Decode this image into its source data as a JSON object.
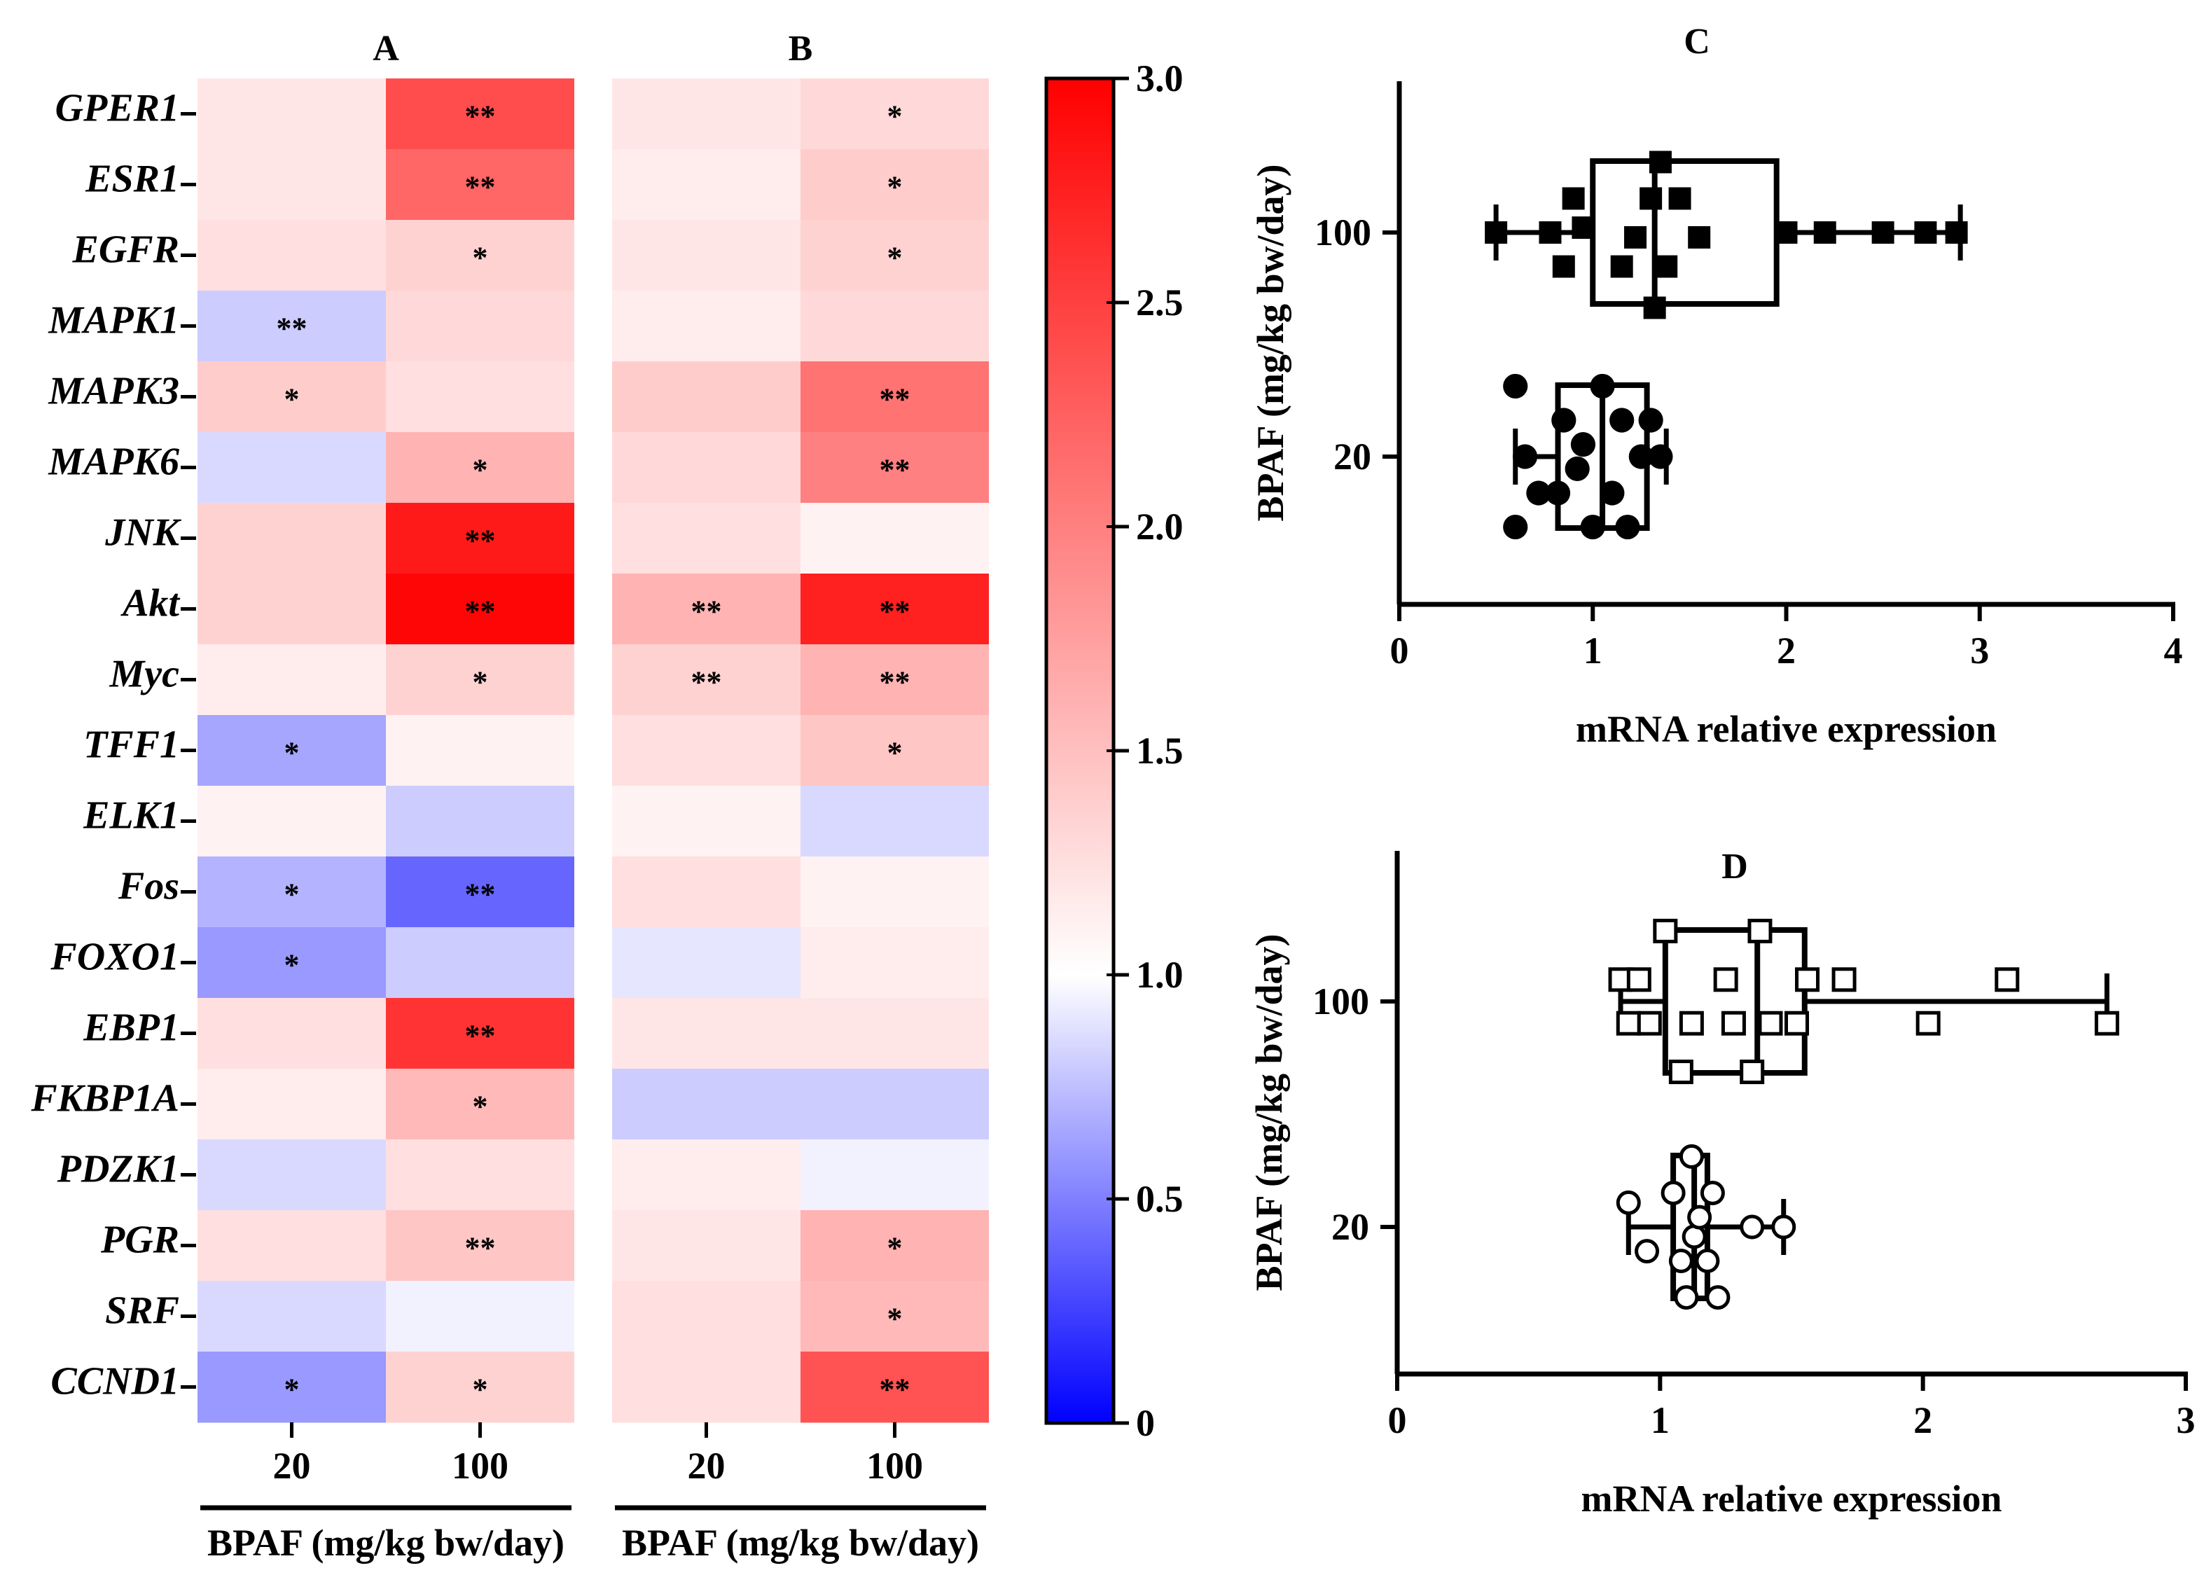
{
  "chart_data": [
    {
      "type": "heatmap",
      "panel": "A",
      "title": "A",
      "rows": [
        "GPER1",
        "ESR1",
        "EGFR",
        "MAPK1",
        "MAPK3",
        "MAPK6",
        "JNK",
        "Akt",
        "Myc",
        "TFF1",
        "ELK1",
        "Fos",
        "FOXO1",
        "EBP1",
        "FKBP1A",
        "PDZK1",
        "PGR",
        "SRF",
        "CCND1"
      ],
      "columns": [
        "20",
        "100"
      ],
      "xlabel": "BPAF (mg/kg bw/day)",
      "values": [
        [
          1.2,
          2.4
        ],
        [
          1.2,
          2.2
        ],
        [
          1.25,
          1.35
        ],
        [
          0.8,
          1.3
        ],
        [
          1.4,
          1.25
        ],
        [
          0.85,
          1.6
        ],
        [
          1.35,
          2.8
        ],
        [
          1.35,
          2.95
        ],
        [
          1.15,
          1.35
        ],
        [
          0.65,
          1.1
        ],
        [
          1.1,
          0.8
        ],
        [
          0.7,
          0.4
        ],
        [
          0.6,
          0.8
        ],
        [
          1.25,
          2.6
        ],
        [
          1.15,
          1.55
        ],
        [
          0.85,
          1.25
        ],
        [
          1.25,
          1.45
        ],
        [
          0.85,
          0.95
        ],
        [
          0.6,
          1.35
        ]
      ],
      "significance": [
        [
          "",
          "**"
        ],
        [
          "",
          "**"
        ],
        [
          "",
          "*"
        ],
        [
          "**",
          ""
        ],
        [
          "*",
          ""
        ],
        [
          "",
          "*"
        ],
        [
          "",
          "**"
        ],
        [
          "",
          "**"
        ],
        [
          "",
          "*"
        ],
        [
          "*",
          ""
        ],
        [
          "",
          ""
        ],
        [
          "*",
          "**"
        ],
        [
          "*",
          ""
        ],
        [
          "",
          "**"
        ],
        [
          "",
          "*"
        ],
        [
          "",
          ""
        ],
        [
          "",
          "**"
        ],
        [
          "",
          ""
        ],
        [
          "*",
          "*"
        ]
      ]
    },
    {
      "type": "heatmap",
      "panel": "B",
      "title": "B",
      "rows": [
        "GPER1",
        "ESR1",
        "EGFR",
        "MAPK1",
        "MAPK3",
        "MAPK6",
        "JNK",
        "Akt",
        "Myc",
        "TFF1",
        "ELK1",
        "Fos",
        "FOXO1",
        "EBP1",
        "FKBP1A",
        "PDZK1",
        "PGR",
        "SRF",
        "CCND1"
      ],
      "columns": [
        "20",
        "100"
      ],
      "xlabel": "BPAF (mg/kg bw/day)",
      "values": [
        [
          1.2,
          1.3
        ],
        [
          1.15,
          1.4
        ],
        [
          1.2,
          1.35
        ],
        [
          1.15,
          1.3
        ],
        [
          1.4,
          2.1
        ],
        [
          1.3,
          2.0
        ],
        [
          1.25,
          1.1
        ],
        [
          1.6,
          2.75
        ],
        [
          1.35,
          1.6
        ],
        [
          1.25,
          1.45
        ],
        [
          1.1,
          0.85
        ],
        [
          1.25,
          1.1
        ],
        [
          0.9,
          1.15
        ],
        [
          1.2,
          1.2
        ],
        [
          0.8,
          0.8
        ],
        [
          1.15,
          0.95
        ],
        [
          1.2,
          1.6
        ],
        [
          1.25,
          1.55
        ],
        [
          1.25,
          2.35
        ]
      ],
      "significance": [
        [
          "",
          "*"
        ],
        [
          "",
          "*"
        ],
        [
          "",
          "*"
        ],
        [
          "",
          ""
        ],
        [
          "",
          "**"
        ],
        [
          "",
          "**"
        ],
        [
          "",
          ""
        ],
        [
          "**",
          "**"
        ],
        [
          "**",
          "**"
        ],
        [
          "",
          "*"
        ],
        [
          "",
          ""
        ],
        [
          "",
          ""
        ],
        [
          "",
          ""
        ],
        [
          "",
          ""
        ],
        [
          "",
          ""
        ],
        [
          "",
          ""
        ],
        [
          "",
          "*"
        ],
        [
          "",
          "*"
        ],
        [
          "",
          "**"
        ]
      ]
    },
    {
      "type": "colorbar",
      "range": [
        0,
        3.0
      ],
      "ticks": [
        "0",
        "0.5",
        "1.0",
        "1.5",
        "2.0",
        "2.5",
        "3.0"
      ],
      "tick_values": [
        0,
        0.5,
        1.0,
        1.5,
        2.0,
        2.5,
        3.0
      ],
      "colors": {
        "low": "#0000ff",
        "mid": "#ffffff",
        "high": "#ff0000"
      }
    },
    {
      "type": "scatter",
      "panel": "C",
      "title": "C",
      "orientation": "horizontal box plot with points",
      "xlabel": "mRNA relative expression",
      "ylabel": "BPAF (mg/kg bw/day)",
      "xlim": [
        0,
        4
      ],
      "xticks": [
        "0",
        "1",
        "2",
        "3",
        "4"
      ],
      "xtick_values": [
        0,
        1,
        2,
        3,
        4
      ],
      "categories": [
        "100",
        "20"
      ],
      "series": [
        {
          "name": "100",
          "marker": "filled-square",
          "box": {
            "min": 0.5,
            "q1": 1.0,
            "median": 1.32,
            "q3": 1.95,
            "max": 2.9
          },
          "points": [
            0.5,
            0.78,
            0.85,
            0.9,
            0.95,
            1.15,
            1.22,
            1.3,
            1.32,
            1.35,
            1.38,
            1.45,
            1.55,
            2.0,
            2.2,
            2.5,
            2.72,
            2.88
          ],
          "offsets": [
            0,
            0,
            0.7,
            -0.7,
            -0.1,
            0.7,
            0.1,
            -0.7,
            1.55,
            -1.45,
            0.7,
            -0.7,
            0.1,
            0,
            0,
            0,
            0,
            0
          ]
        },
        {
          "name": "20",
          "marker": "filled-circle",
          "box": {
            "min": 0.6,
            "q1": 0.82,
            "median": 1.05,
            "q3": 1.28,
            "max": 1.38
          },
          "points": [
            0.6,
            0.6,
            0.65,
            0.72,
            0.82,
            0.85,
            0.92,
            0.95,
            1.0,
            1.05,
            1.1,
            1.15,
            1.18,
            1.25,
            1.3,
            1.35
          ],
          "offsets": [
            1.45,
            -1.45,
            0,
            0.75,
            0.75,
            -0.75,
            0.25,
            -0.25,
            1.45,
            -1.45,
            0.75,
            -0.75,
            1.45,
            0,
            -0.75,
            0
          ]
        }
      ]
    },
    {
      "type": "scatter",
      "panel": "D",
      "title": "D",
      "orientation": "horizontal box plot with points",
      "xlabel": "mRNA relative expression",
      "ylabel": "BPAF (mg/kg bw/day)",
      "xlim": [
        0,
        3
      ],
      "xticks": [
        "0",
        "1",
        "2",
        "3"
      ],
      "xtick_values": [
        0,
        1,
        2,
        3
      ],
      "categories": [
        "100",
        "20"
      ],
      "series": [
        {
          "name": "100",
          "marker": "open-square",
          "box": {
            "min": 0.85,
            "q1": 1.02,
            "median": 1.37,
            "q3": 1.55,
            "max": 2.7
          },
          "points": [
            0.85,
            0.88,
            0.92,
            0.96,
            1.02,
            1.08,
            1.12,
            1.25,
            1.28,
            1.35,
            1.38,
            1.42,
            1.52,
            1.56,
            1.7,
            2.02,
            2.32,
            2.7
          ],
          "offsets": [
            -0.45,
            0.45,
            -0.45,
            0.45,
            -1.45,
            1.45,
            0.45,
            -0.45,
            0.45,
            1.45,
            -1.45,
            0.45,
            0.45,
            -0.45,
            -0.45,
            0.45,
            -0.45,
            0.45
          ]
        },
        {
          "name": "20",
          "marker": "open-circle",
          "box": {
            "min": 0.88,
            "q1": 1.05,
            "median": 1.13,
            "q3": 1.18,
            "max": 1.47
          },
          "points": [
            0.88,
            0.95,
            1.05,
            1.08,
            1.1,
            1.12,
            1.13,
            1.15,
            1.18,
            1.2,
            1.22,
            1.35,
            1.47
          ],
          "offsets": [
            -0.5,
            0.5,
            -0.7,
            0.7,
            1.45,
            -1.45,
            0.2,
            -0.2,
            0.7,
            -0.7,
            1.45,
            0,
            0
          ]
        }
      ]
    }
  ]
}
